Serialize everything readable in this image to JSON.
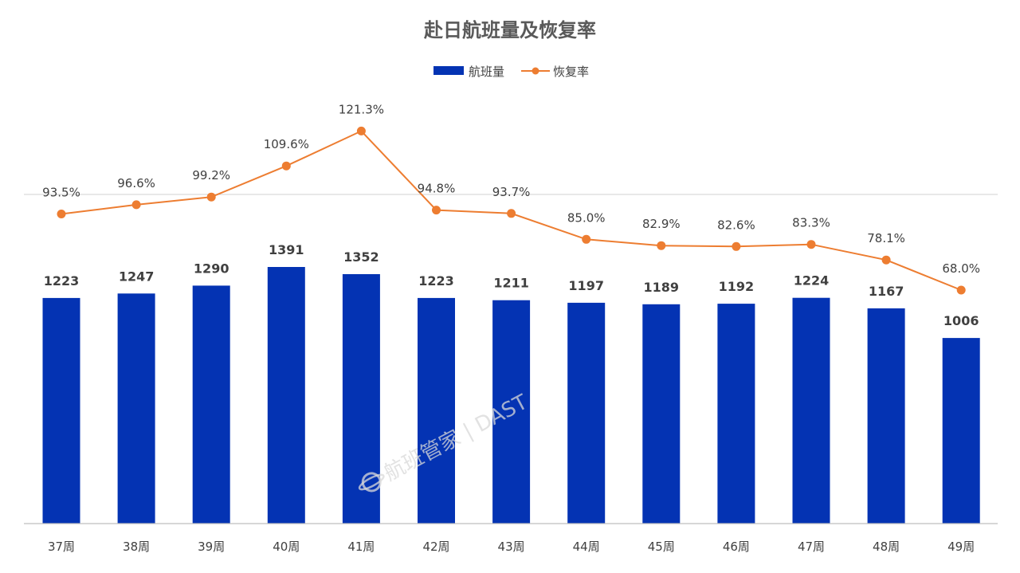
{
  "chart_data": {
    "type": "bar",
    "title": "赴日航班量及恢复率",
    "categories": [
      "37周",
      "38周",
      "39周",
      "40周",
      "41周",
      "42周",
      "43周",
      "44周",
      "45周",
      "46周",
      "47周",
      "48周",
      "49周"
    ],
    "series": [
      {
        "name": "航班量",
        "kind": "bar",
        "color": "#0433b3",
        "values": [
          1223,
          1247,
          1290,
          1391,
          1352,
          1223,
          1211,
          1197,
          1189,
          1192,
          1224,
          1167,
          1006
        ],
        "labels": [
          "1223",
          "1247",
          "1290",
          "1391",
          "1352",
          "1223",
          "1211",
          "1197",
          "1189",
          "1192",
          "1224",
          "1167",
          "1006"
        ]
      },
      {
        "name": "恢复率",
        "kind": "line",
        "color": "#ed7d31",
        "values": [
          93.5,
          96.6,
          99.2,
          109.6,
          121.3,
          94.8,
          93.7,
          85.0,
          82.9,
          82.6,
          83.3,
          78.1,
          68.0
        ],
        "labels": [
          "93.5%",
          "96.6%",
          "99.2%",
          "109.6%",
          "121.3%",
          "94.8%",
          "93.7%",
          "85.0%",
          "82.9%",
          "82.6%",
          "83.3%",
          "78.1%",
          "68.0%"
        ]
      }
    ],
    "legend": {
      "position": "top-center"
    },
    "grid": false
  },
  "watermark": {
    "text": "航班管家 | DAST",
    "icon": "planet-logo-icon"
  }
}
